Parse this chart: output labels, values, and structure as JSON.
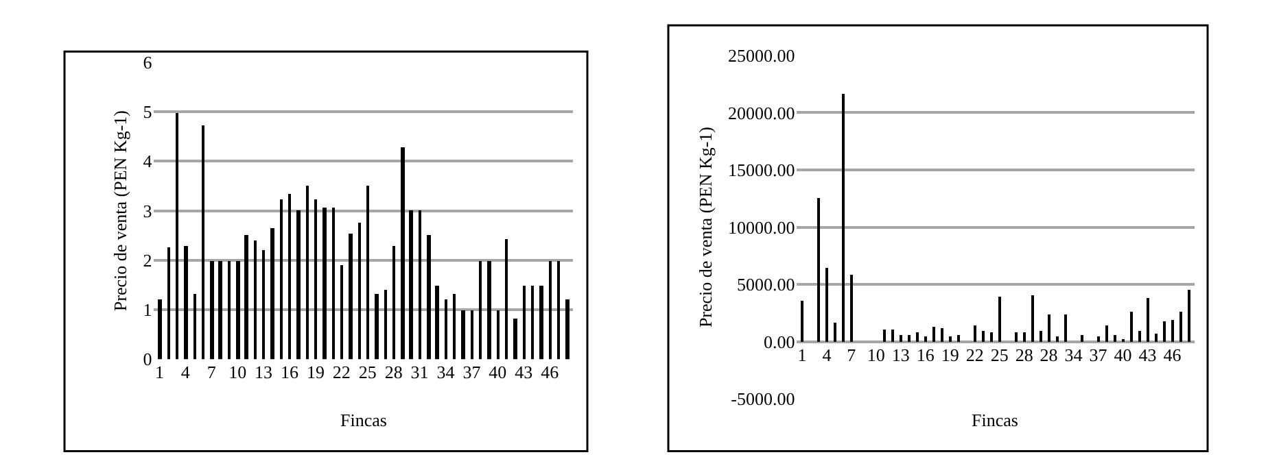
{
  "chart_data": [
    {
      "type": "bar",
      "xlabel": "Fincas",
      "ylabel": "Precio de venta (PEN Kg-1)",
      "categories": [
        "1",
        null,
        null,
        "4",
        null,
        null,
        "7",
        null,
        null,
        "10",
        null,
        null,
        "13",
        null,
        null,
        "16",
        null,
        null,
        "19",
        null,
        null,
        "22",
        null,
        null,
        "25",
        null,
        null,
        "28",
        null,
        null,
        "31",
        null,
        null,
        "34",
        null,
        null,
        "37",
        null,
        null,
        "40",
        null,
        null,
        "43",
        null,
        null,
        "46",
        null,
        null
      ],
      "values": [
        1.2,
        2.27,
        4.97,
        2.3,
        1.33,
        4.73,
        2.0,
        2.0,
        2.0,
        2.0,
        2.5,
        2.4,
        2.22,
        2.66,
        3.22,
        3.33,
        3.0,
        3.52,
        3.22,
        3.08,
        3.08,
        1.9,
        2.53,
        2.77,
        3.52,
        1.33,
        1.4,
        2.3,
        4.28,
        3.0,
        3.0,
        2.5,
        1.5,
        1.2,
        1.33,
        1.0,
        1.0,
        2.0,
        2.0,
        1.0,
        2.43,
        0.83,
        1.5,
        1.5,
        1.5,
        2.0,
        2.0,
        1.2
      ],
      "color": "#000000",
      "ylim": [
        0,
        6
      ],
      "yticks": [
        0,
        1,
        2,
        3,
        4,
        5,
        6
      ],
      "grid": "y"
    },
    {
      "type": "bar",
      "xlabel": "Fincas",
      "ylabel": "Precio de venta (PEN Kg-1)",
      "categories": [
        "1",
        null,
        null,
        "4",
        null,
        null,
        "7",
        null,
        null,
        "10",
        null,
        null,
        "13",
        null,
        null,
        "16",
        null,
        null,
        "19",
        null,
        null,
        "22",
        null,
        null,
        "25",
        null,
        null,
        "28",
        null,
        null,
        "28",
        null,
        null,
        "34",
        null,
        null,
        "37",
        null,
        null,
        "40",
        null,
        null,
        "43",
        null,
        null,
        "46",
        null,
        null
      ],
      "values": [
        3600,
        0,
        12500,
        6400,
        1700,
        21700,
        5900,
        0,
        0,
        0,
        1000,
        1100,
        600,
        600,
        850,
        470,
        1330,
        1200,
        500,
        600,
        0,
        1450,
        980,
        860,
        3900,
        0,
        860,
        860,
        4000,
        980,
        2400,
        400,
        2400,
        0,
        600,
        0,
        500,
        1450,
        600,
        270,
        2600,
        980,
        3800,
        740,
        1800,
        1900,
        2600,
        4500
      ],
      "color": "#000000",
      "ylim": [
        -5000,
        25000
      ],
      "yticks": [
        {
          "value": -5000,
          "label": "-5000.00"
        },
        {
          "value": 0,
          "label": "0.00"
        },
        {
          "value": 5000,
          "label": "5000.00"
        },
        {
          "value": 10000,
          "label": "10000.00"
        },
        {
          "value": 15000,
          "label": "15000.00"
        },
        {
          "value": 20000,
          "label": "20000.00"
        },
        {
          "value": 25000,
          "label": "25000.00"
        }
      ],
      "grid": "y"
    }
  ]
}
